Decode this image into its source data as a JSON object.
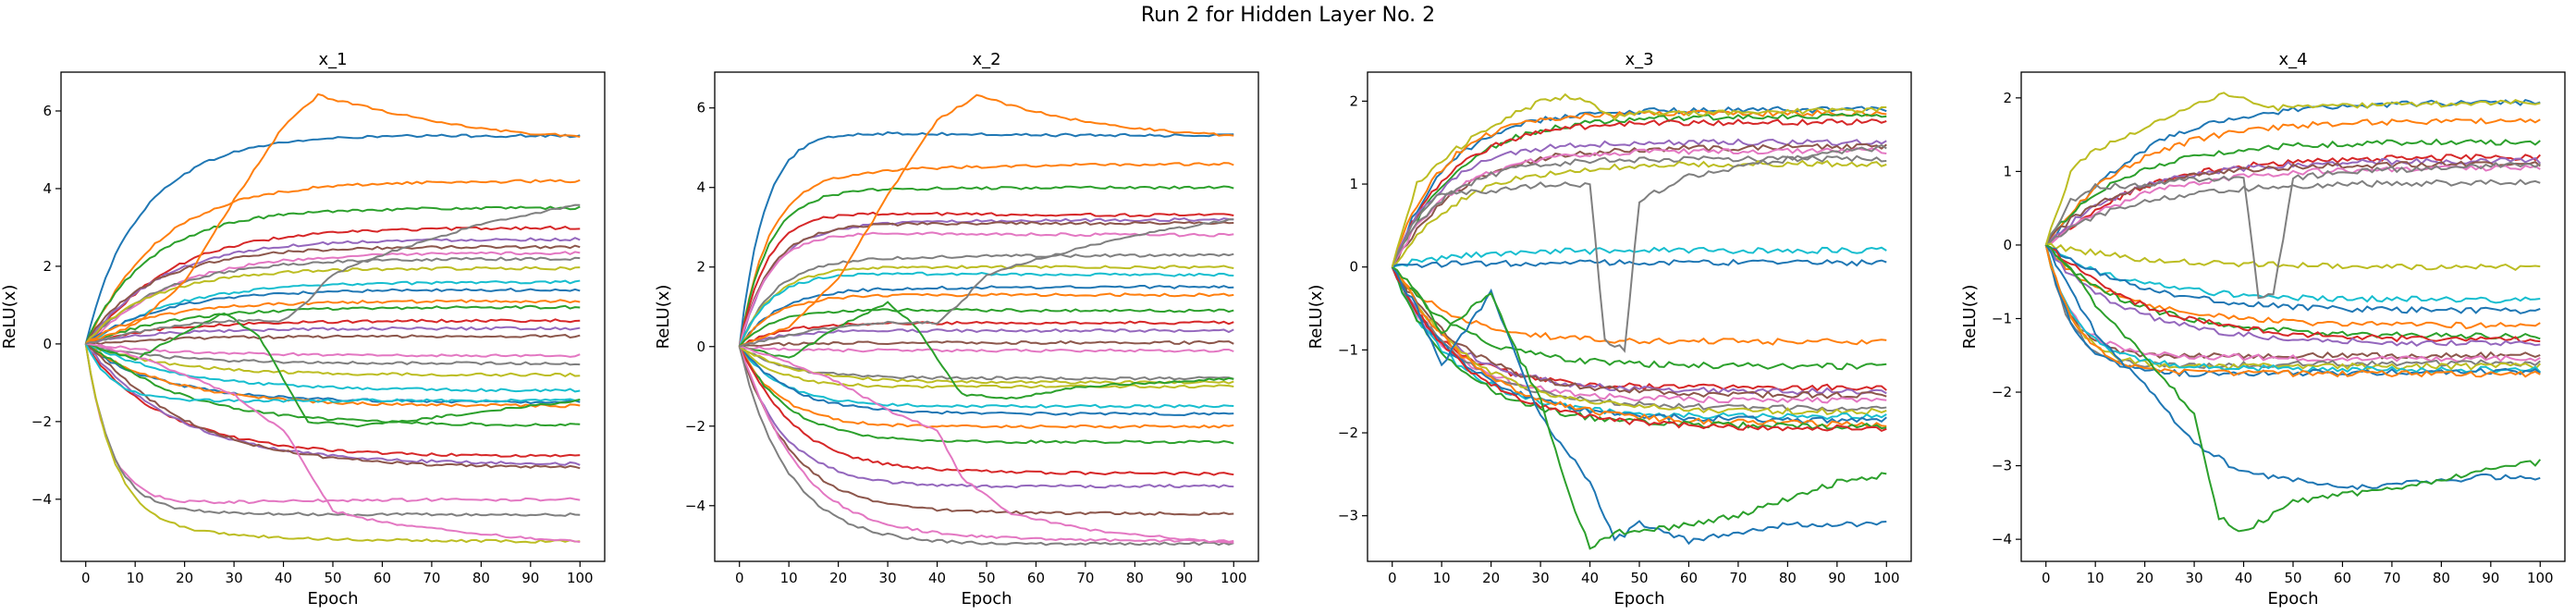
{
  "figure": {
    "title": "Run 2 for Hidden Layer No. 2"
  },
  "colors": [
    "#1f77b4",
    "#ff7f0e",
    "#2ca02c",
    "#d62728",
    "#9467bd",
    "#8c564b",
    "#e377c2",
    "#7f7f7f",
    "#bcbd22",
    "#17becf"
  ],
  "chart_data": [
    {
      "type": "line",
      "title": "x_1",
      "xlabel": "Epoch",
      "ylabel": "ReLU(x)",
      "xlim": [
        -5,
        105
      ],
      "ylim": [
        -5.6,
        7.0
      ],
      "xticks": [
        0,
        10,
        20,
        30,
        40,
        50,
        60,
        70,
        80,
        90,
        100
      ],
      "yticks": [
        -4,
        -2,
        0,
        2,
        4,
        6
      ],
      "grid": false,
      "legend": "none",
      "series_finals": [
        5.35,
        4.2,
        3.5,
        3.0,
        2.7,
        2.5,
        2.35,
        2.2,
        1.95,
        1.6,
        1.4,
        1.1,
        0.95,
        0.6,
        0.4,
        0.2,
        -0.3,
        -0.5,
        -0.8,
        -1.2,
        -1.5,
        -1.6,
        -2.1,
        -2.9,
        -3.1,
        -3.2,
        -4.0,
        -4.4,
        -5.1,
        -1.45
      ],
      "special_series": [
        {
          "x": [
            0,
            10,
            20,
            30,
            40,
            47,
            60,
            70,
            80,
            90,
            100
          ],
          "y": [
            0,
            0.5,
            1.6,
            3.7,
            5.6,
            6.4,
            6.0,
            5.75,
            5.55,
            5.42,
            5.35
          ]
        },
        {
          "x": [
            0,
            10,
            20,
            28,
            35,
            45,
            55,
            70,
            100
          ],
          "y": [
            0,
            -0.4,
            0.3,
            0.8,
            0.2,
            -2.0,
            -2.1,
            -1.9,
            -1.45
          ]
        },
        {
          "x": [
            0,
            10,
            20,
            30,
            35,
            40,
            50,
            60,
            80,
            100
          ],
          "y": [
            0,
            -0.3,
            -0.8,
            -1.3,
            -1.8,
            -2.2,
            -4.3,
            -4.6,
            -4.9,
            -5.1
          ]
        },
        {
          "x": [
            0,
            10,
            20,
            30,
            40,
            44,
            50,
            60,
            70,
            80,
            100
          ],
          "y": [
            0,
            0.3,
            0.5,
            0.6,
            0.6,
            1.0,
            1.8,
            2.3,
            2.7,
            3.1,
            3.6
          ]
        }
      ]
    },
    {
      "type": "line",
      "title": "x_2",
      "xlabel": "Epoch",
      "ylabel": "ReLU(x)",
      "xlim": [
        -5,
        105
      ],
      "ylim": [
        -5.4,
        6.9
      ],
      "xticks": [
        0,
        10,
        20,
        30,
        40,
        50,
        60,
        70,
        80,
        90,
        100
      ],
      "yticks": [
        -4,
        -2,
        0,
        2,
        4,
        6
      ],
      "grid": false,
      "legend": "none",
      "series_finals": [
        5.3,
        4.6,
        4.0,
        3.3,
        3.2,
        3.1,
        2.8,
        2.3,
        2.0,
        1.8,
        1.5,
        1.3,
        0.9,
        0.6,
        0.4,
        0.1,
        -0.1,
        -0.8,
        -1.0,
        -1.5,
        -1.7,
        -2.0,
        -2.4,
        -3.2,
        -3.5,
        -4.2,
        -4.9,
        -4.95,
        -0.9
      ],
      "special_series": [
        {
          "x": [
            0,
            10,
            20,
            30,
            40,
            48,
            60,
            70,
            80,
            90,
            100
          ],
          "y": [
            0,
            0.5,
            1.7,
            3.8,
            5.7,
            6.3,
            5.9,
            5.65,
            5.5,
            5.38,
            5.3
          ]
        },
        {
          "x": [
            0,
            10,
            20,
            30,
            35,
            45,
            55,
            70,
            100
          ],
          "y": [
            0,
            -0.3,
            0.5,
            1.1,
            0.6,
            -1.2,
            -1.3,
            -1.0,
            -0.8
          ]
        },
        {
          "x": [
            0,
            10,
            20,
            30,
            40,
            45,
            55,
            70,
            100
          ],
          "y": [
            0,
            -0.4,
            -0.9,
            -1.6,
            -2.1,
            -3.3,
            -4.2,
            -4.6,
            -4.95
          ]
        },
        {
          "x": [
            0,
            10,
            20,
            30,
            40,
            44,
            50,
            60,
            80,
            100
          ],
          "y": [
            0,
            0.3,
            0.5,
            0.6,
            0.6,
            1.0,
            1.8,
            2.2,
            2.8,
            3.2
          ]
        }
      ]
    },
    {
      "type": "line",
      "title": "x_3",
      "xlabel": "Epoch",
      "ylabel": "ReLU(x)",
      "xlim": [
        -5,
        105
      ],
      "ylim": [
        -3.55,
        2.35
      ],
      "xticks": [
        0,
        10,
        20,
        30,
        40,
        50,
        60,
        70,
        80,
        90,
        100
      ],
      "yticks": [
        -3,
        -2,
        -1,
        0,
        1,
        2
      ],
      "grid": false,
      "legend": "none",
      "series_finals": [
        1.9,
        1.85,
        1.82,
        1.75,
        1.5,
        1.45,
        1.4,
        1.3,
        1.25,
        0.2,
        0.05,
        -0.9,
        -1.2,
        -1.45,
        -1.5,
        -1.55,
        -1.6,
        -1.7,
        -1.75,
        -1.8,
        -1.85,
        -1.9,
        -1.92,
        -1.95
      ],
      "special_series": [
        {
          "x": [
            0,
            5,
            10,
            20,
            30,
            40,
            45,
            50,
            60,
            70,
            80,
            90,
            100
          ],
          "y": [
            0,
            -0.5,
            -1.2,
            -0.3,
            -1.8,
            -2.6,
            -3.3,
            -3.1,
            -3.3,
            -3.2,
            -3.1,
            -3.1,
            -3.1
          ]
        },
        {
          "x": [
            0,
            5,
            10,
            20,
            25,
            30,
            35,
            40,
            45,
            50,
            60,
            70,
            80,
            90,
            100
          ],
          "y": [
            0,
            -0.3,
            -0.8,
            -0.3,
            -1.0,
            -1.6,
            -2.6,
            -3.4,
            -3.2,
            -3.2,
            -3.1,
            -3.0,
            -2.8,
            -2.6,
            -2.5
          ]
        },
        {
          "x": [
            0,
            5,
            10,
            20,
            30,
            40,
            43,
            47,
            50,
            60,
            80,
            100
          ],
          "y": [
            0,
            0.6,
            0.9,
            0.9,
            1.0,
            1.0,
            -0.9,
            -1.0,
            0.8,
            1.1,
            1.3,
            1.45
          ]
        },
        {
          "x": [
            0,
            5,
            10,
            20,
            30,
            35,
            40,
            45,
            50,
            60,
            80,
            100
          ],
          "y": [
            0,
            1.0,
            1.3,
            1.7,
            2.0,
            2.05,
            2.0,
            1.8,
            1.85,
            1.85,
            1.88,
            1.9
          ]
        }
      ]
    },
    {
      "type": "line",
      "title": "x_4",
      "xlabel": "Epoch",
      "ylabel": "ReLU(x)",
      "xlim": [
        -5,
        105
      ],
      "ylim": [
        -4.3,
        2.35
      ],
      "xticks": [
        0,
        10,
        20,
        30,
        40,
        50,
        60,
        70,
        80,
        90,
        100
      ],
      "yticks": [
        -4,
        -3,
        -2,
        -1,
        0,
        1,
        2
      ],
      "grid": false,
      "legend": "none",
      "series_finals": [
        1.95,
        1.7,
        1.4,
        1.2,
        1.15,
        1.1,
        1.05,
        0.85,
        -0.3,
        -0.75,
        -0.9,
        -1.1,
        -1.25,
        -1.3,
        -1.35,
        -1.5,
        -1.55,
        -1.6,
        -1.65,
        -1.7,
        -1.72,
        -1.75
      ],
      "special_series": [
        {
          "x": [
            0,
            5,
            10,
            20,
            30,
            40,
            50,
            60,
            70,
            80,
            90,
            100
          ],
          "y": [
            0,
            -0.6,
            -1.2,
            -1.9,
            -2.7,
            -3.1,
            -3.2,
            -3.3,
            -3.25,
            -3.2,
            -3.15,
            -3.15
          ]
        },
        {
          "x": [
            0,
            5,
            10,
            20,
            30,
            35,
            40,
            45,
            50,
            60,
            70,
            80,
            90,
            100
          ],
          "y": [
            0,
            -0.3,
            -0.8,
            -1.5,
            -2.3,
            -3.7,
            -3.9,
            -3.7,
            -3.5,
            -3.4,
            -3.3,
            -3.2,
            -3.05,
            -2.95
          ]
        },
        {
          "x": [
            0,
            5,
            10,
            20,
            30,
            40,
            43,
            46,
            50,
            60,
            80,
            100
          ],
          "y": [
            0,
            0.6,
            0.8,
            0.8,
            0.9,
            0.9,
            -0.7,
            -0.7,
            0.9,
            1.0,
            1.05,
            1.1
          ]
        },
        {
          "x": [
            0,
            5,
            10,
            20,
            30,
            35,
            40,
            45,
            50,
            60,
            80,
            100
          ],
          "y": [
            0,
            1.0,
            1.3,
            1.6,
            1.9,
            2.05,
            2.0,
            1.85,
            1.9,
            1.9,
            1.92,
            1.95
          ]
        }
      ]
    }
  ]
}
